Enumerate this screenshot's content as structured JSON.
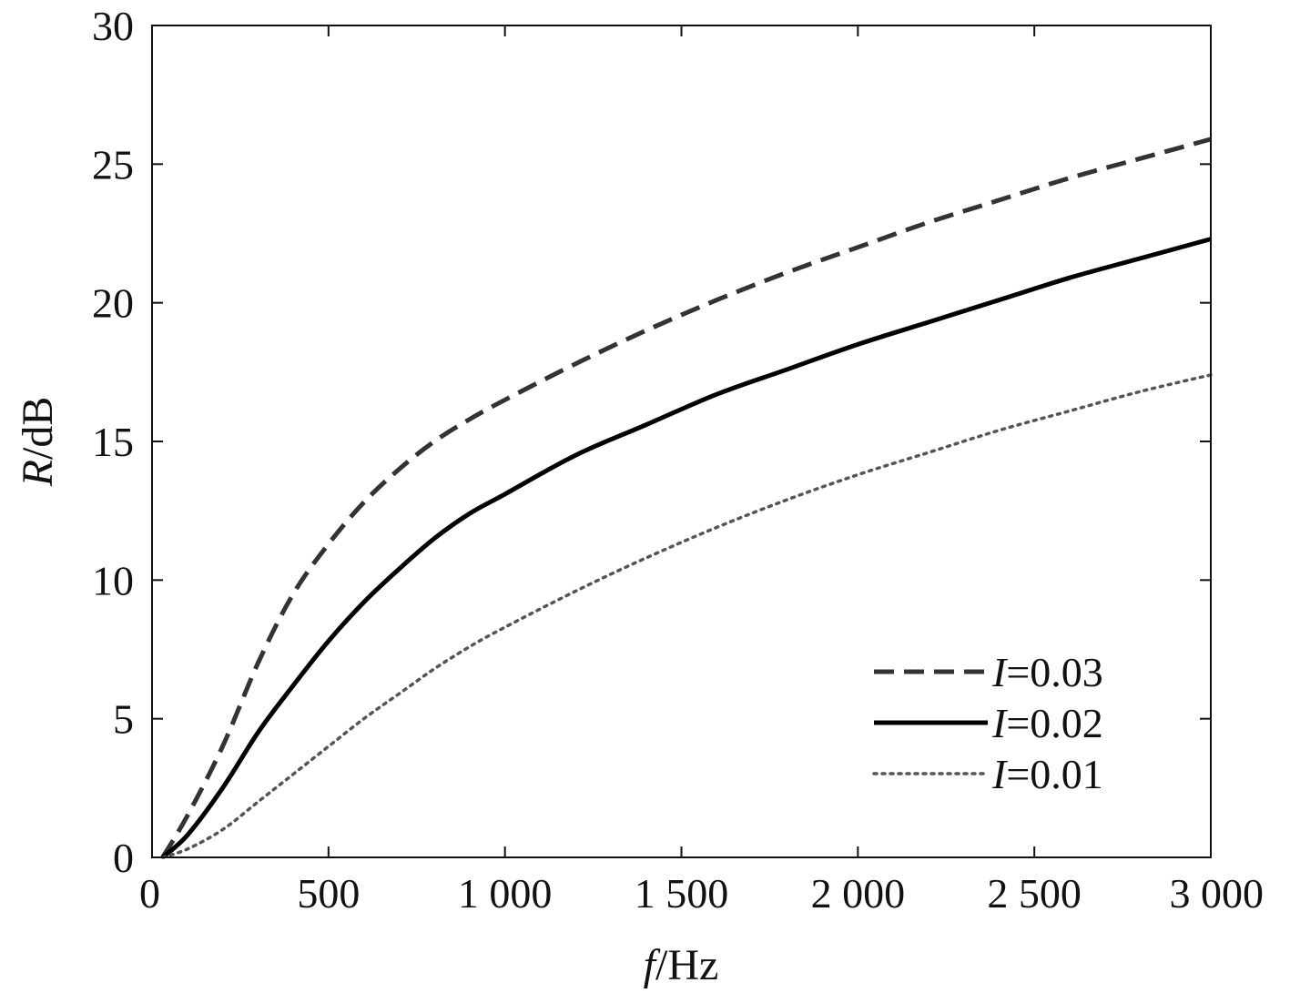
{
  "chart_data": {
    "type": "line",
    "xlabel": {
      "var": "f",
      "unit": "/Hz"
    },
    "ylabel": {
      "var": "R",
      "unit": "/dB"
    },
    "xlim": [
      0,
      3000
    ],
    "ylim": [
      0,
      30
    ],
    "xticks": [
      0,
      500,
      1000,
      1500,
      2000,
      2500,
      3000
    ],
    "xtick_labels": [
      "0",
      "500",
      "1 000",
      "1 500",
      "2 000",
      "2 500",
      "3 000"
    ],
    "yticks": [
      0,
      5,
      10,
      15,
      20,
      25,
      30
    ],
    "ytick_labels": [
      "0",
      "5",
      "10",
      "15",
      "20",
      "25",
      "30"
    ],
    "grid": false,
    "legend_position": "bottom-right",
    "x": [
      30,
      100,
      200,
      300,
      400,
      500,
      600,
      700,
      800,
      900,
      1000,
      1200,
      1400,
      1600,
      1800,
      2000,
      2200,
      2400,
      2600,
      2800,
      3000
    ],
    "series": [
      {
        "name": "I=0.03",
        "name_var": "I",
        "name_value": "=0.03",
        "style": "dashed",
        "color": "#333333",
        "values": [
          0,
          1.5,
          4.0,
          7.0,
          9.5,
          11.3,
          12.8,
          14.0,
          15.0,
          15.8,
          16.5,
          17.8,
          19.0,
          20.1,
          21.1,
          22.0,
          22.9,
          23.7,
          24.5,
          25.2,
          25.9
        ]
      },
      {
        "name": "I=0.02",
        "name_var": "I",
        "name_value": "=0.02",
        "style": "solid",
        "color": "#000000",
        "values": [
          0,
          0.8,
          2.5,
          4.5,
          6.2,
          7.8,
          9.2,
          10.4,
          11.5,
          12.4,
          13.1,
          14.5,
          15.6,
          16.7,
          17.6,
          18.5,
          19.3,
          20.1,
          20.9,
          21.6,
          22.3
        ]
      },
      {
        "name": "I=0.01",
        "name_var": "I",
        "name_value": "=0.01",
        "style": "dotted",
        "color": "#555555",
        "values": [
          0,
          0.3,
          1.0,
          2.0,
          3.0,
          4.0,
          5.0,
          5.9,
          6.8,
          7.6,
          8.3,
          9.6,
          10.8,
          11.9,
          12.9,
          13.8,
          14.6,
          15.4,
          16.1,
          16.8,
          17.4
        ]
      }
    ]
  }
}
